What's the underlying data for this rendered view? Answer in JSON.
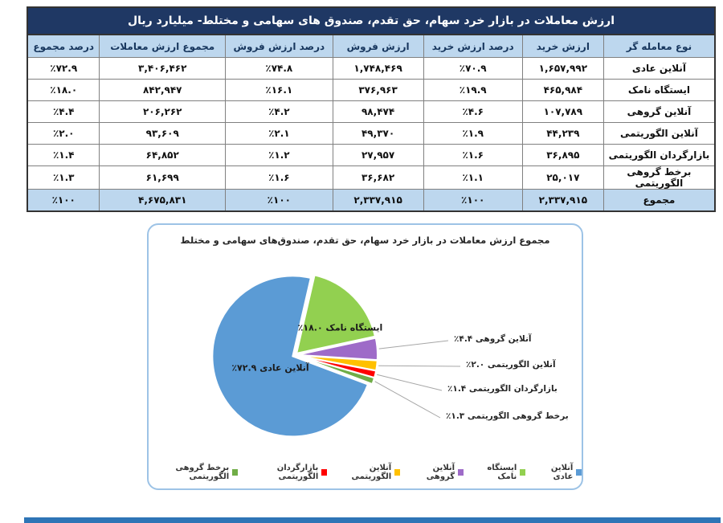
{
  "colors": {
    "title_bar": "#1F3864",
    "header_row": "#BDD7EE",
    "panel_border": "#9DC3E6",
    "bottom_bar": "#2E75B6",
    "grid_line": "#808080"
  },
  "table": {
    "title": "ارزش معاملات در بازار خرد سهام، حق تقدم، صندوق های سهامی و مختلط- میلیارد ریال",
    "columns": [
      "نوع معامله گر",
      "ارزش خرید",
      "درصد ارزش خرید",
      "ارزش فروش",
      "درصد ارزش فروش",
      "مجموع ارزش معاملات",
      "درصد مجموع"
    ],
    "rows": [
      {
        "type": "آنلاین عادی",
        "buy": "۱,۶۵۷,۹۹۲",
        "buy_pct": "٪۷۰.۹",
        "sell": "۱,۷۴۸,۴۶۹",
        "sell_pct": "٪۷۴.۸",
        "total": "۳,۴۰۶,۴۶۲",
        "total_pct": "٪۷۲.۹"
      },
      {
        "type": "ایستگاه نامک",
        "buy": "۴۶۵,۹۸۴",
        "buy_pct": "٪۱۹.۹",
        "sell": "۳۷۶,۹۶۳",
        "sell_pct": "٪۱۶.۱",
        "total": "۸۴۲,۹۴۷",
        "total_pct": "٪۱۸.۰"
      },
      {
        "type": "آنلاین گروهی",
        "buy": "۱۰۷,۷۸۹",
        "buy_pct": "٪۴.۶",
        "sell": "۹۸,۴۷۴",
        "sell_pct": "٪۴.۲",
        "total": "۲۰۶,۲۶۲",
        "total_pct": "٪۴.۴"
      },
      {
        "type": "آنلاین الگوریتمی",
        "buy": "۴۴,۲۳۹",
        "buy_pct": "٪۱.۹",
        "sell": "۴۹,۳۷۰",
        "sell_pct": "٪۲.۱",
        "total": "۹۳,۶۰۹",
        "total_pct": "٪۲.۰"
      },
      {
        "type": "بازارگردان الگوریتمی",
        "buy": "۳۶,۸۹۵",
        "buy_pct": "٪۱.۶",
        "sell": "۲۷,۹۵۷",
        "sell_pct": "٪۱.۲",
        "total": "۶۴,۸۵۲",
        "total_pct": "٪۱.۴"
      },
      {
        "type": "برخط گروهی الگوریتمی",
        "buy": "۲۵,۰۱۷",
        "buy_pct": "٪۱.۱",
        "sell": "۳۶,۶۸۲",
        "sell_pct": "٪۱.۶",
        "total": "۶۱,۶۹۹",
        "total_pct": "٪۱.۳"
      }
    ],
    "total_row": {
      "type": "مجموع",
      "buy": "۲,۳۳۷,۹۱۵",
      "buy_pct": "٪۱۰۰",
      "sell": "۲,۳۳۷,۹۱۵",
      "sell_pct": "٪۱۰۰",
      "total": "۴,۶۷۵,۸۳۱",
      "total_pct": "٪۱۰۰"
    }
  },
  "chart_data": {
    "type": "pie",
    "title": "مجموع ارزش معاملات در بازار خرد سهام، حق تقدم، صندوق‌های سهامی و مختلط",
    "start_angle_deg": 13,
    "slices": [
      {
        "name": "ایستگاه نامک",
        "value": 18.0,
        "percent_label": "٪۱۸.۰",
        "color": "#92D050",
        "label_style": "inside"
      },
      {
        "name": "آنلاین گروهی",
        "value": 4.4,
        "percent_label": "٪۴.۴",
        "color": "#9E6BC8",
        "label_style": "callout"
      },
      {
        "name": "آنلاین الگوریتمی",
        "value": 2.0,
        "percent_label": "٪۲.۰",
        "color": "#FFC000",
        "label_style": "callout"
      },
      {
        "name": "بازارگردان الگوریتمی",
        "value": 1.4,
        "percent_label": "٪۱.۴",
        "color": "#FF0000",
        "label_style": "callout"
      },
      {
        "name": "برخط گروهی الگوریتمی",
        "value": 1.3,
        "percent_label": "٪۱.۳",
        "color": "#70AD47",
        "label_style": "callout"
      },
      {
        "name": "آنلاین عادی",
        "value": 72.9,
        "percent_label": "٪۷۲.۹",
        "color": "#5B9BD5",
        "label_style": "inside"
      }
    ],
    "legend": [
      {
        "label": "آنلاین عادی",
        "color": "#5B9BD5"
      },
      {
        "label": "ایستگاه نامک",
        "color": "#92D050"
      },
      {
        "label": "آنلاین گروهی",
        "color": "#9E6BC8"
      },
      {
        "label": "آنلاین الگوریتمی",
        "color": "#FFC000"
      },
      {
        "label": "بازارگردان الگوریتمی",
        "color": "#FF0000"
      },
      {
        "label": "برخط گروهی الگوریتمی",
        "color": "#70AD47"
      }
    ],
    "legend_position": "bottom"
  }
}
